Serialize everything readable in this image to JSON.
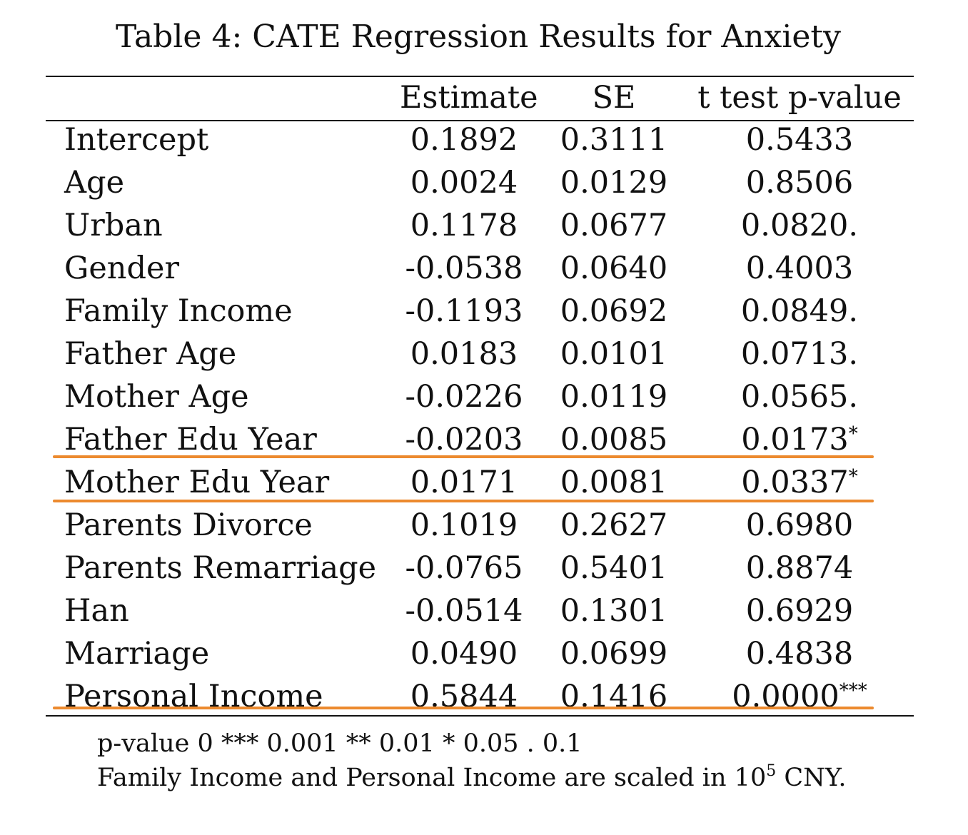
{
  "caption": "Table 4: CATE Regression Results for Anxiety",
  "columns": {
    "variable": "",
    "estimate": "Estimate",
    "se": "SE",
    "pvalue": "t test p-value"
  },
  "rows": [
    {
      "variable": "Intercept",
      "estimate": "0.1892",
      "se": "0.3111",
      "pvalue": "0.5433",
      "stars": ""
    },
    {
      "variable": "Age",
      "estimate": "0.0024",
      "se": "0.0129",
      "pvalue": "0.8506",
      "stars": ""
    },
    {
      "variable": "Urban",
      "estimate": "0.1178",
      "se": "0.0677",
      "pvalue": "0.0820.",
      "stars": ""
    },
    {
      "variable": "Gender",
      "estimate": "-0.0538",
      "se": "0.0640",
      "pvalue": "0.4003",
      "stars": ""
    },
    {
      "variable": "Family Income",
      "estimate": "-0.1193",
      "se": "0.0692",
      "pvalue": "0.0849.",
      "stars": ""
    },
    {
      "variable": "Father Age",
      "estimate": "0.0183",
      "se": "0.0101",
      "pvalue": "0.0713.",
      "stars": ""
    },
    {
      "variable": "Mother Age",
      "estimate": "-0.0226",
      "se": "0.0119",
      "pvalue": "0.0565.",
      "stars": ""
    },
    {
      "variable": "Father Edu Year",
      "estimate": "-0.0203",
      "se": "0.0085",
      "pvalue": "0.0173",
      "stars": "*"
    },
    {
      "variable": "Mother Edu Year",
      "estimate": "0.0171",
      "se": "0.0081",
      "pvalue": "0.0337",
      "stars": "*"
    },
    {
      "variable": "Parents Divorce",
      "estimate": "0.1019",
      "se": "0.2627",
      "pvalue": "0.6980",
      "stars": ""
    },
    {
      "variable": "Parents Remarriage",
      "estimate": "-0.0765",
      "se": "0.5401",
      "pvalue": "0.8874",
      "stars": ""
    },
    {
      "variable": "Han",
      "estimate": "-0.0514",
      "se": "0.1301",
      "pvalue": "0.6929",
      "stars": ""
    },
    {
      "variable": "Marriage",
      "estimate": "0.0490",
      "se": "0.0699",
      "pvalue": "0.4838",
      "stars": ""
    },
    {
      "variable": "Personal Income",
      "estimate": "0.5844",
      "se": "0.1416",
      "pvalue": "0.0000",
      "stars": "***"
    }
  ],
  "notes": {
    "significance": "p-value 0 *** 0.001 ** 0.01 * 0.05 . 0.1",
    "scaling_prefix": "Family Income and Personal Income are scaled in 10",
    "scaling_exponent": "5",
    "scaling_suffix": " CNY."
  },
  "highlight_color": "#ec8a2e"
}
